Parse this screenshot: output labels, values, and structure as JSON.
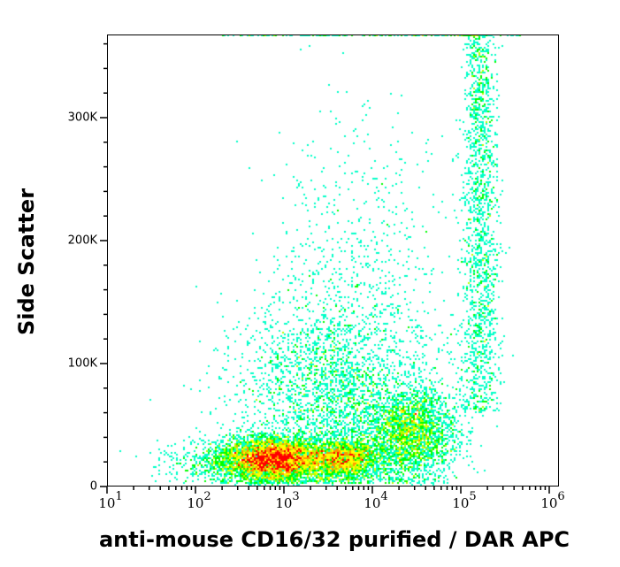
{
  "chart_data": {
    "type": "scatter",
    "subtype": "flow-cytometry-density-dot-plot",
    "title": "",
    "xlabel": "anti-mouse CD16/32 purified / DAR APC",
    "ylabel": "Side Scatter",
    "x_scale": "log",
    "x_range_log10": [
      1,
      6
    ],
    "x_ticks": [
      {
        "base": "10",
        "exp": "1",
        "log": 1
      },
      {
        "base": "10",
        "exp": "2",
        "log": 2
      },
      {
        "base": "10",
        "exp": "3",
        "log": 3
      },
      {
        "base": "10",
        "exp": "4",
        "log": 4
      },
      {
        "base": "10",
        "exp": "5",
        "log": 5
      },
      {
        "base": "10",
        "exp": "6",
        "log": 6
      }
    ],
    "y_scale": "linear",
    "ylim": [
      0,
      368000
    ],
    "y_ticks": [
      {
        "label": "0",
        "value": 0
      },
      {
        "label": "100K",
        "value": 100000
      },
      {
        "label": "200K",
        "value": 200000
      },
      {
        "label": "300K",
        "value": 300000
      }
    ],
    "y_minor_tick_step": 20000,
    "grid": false,
    "legend": null,
    "colormap": [
      "#0000ff",
      "#00b4ff",
      "#00ffc8",
      "#00ff00",
      "#b4ff00",
      "#ffff00",
      "#ff9600",
      "#ff0000"
    ],
    "populations": [
      {
        "name": "main-low-SSC-cluster",
        "center_log10_x": 2.88,
        "center_y": 22000,
        "sd_log10_x": 0.28,
        "sd_y": 9000,
        "n": 5200
      },
      {
        "name": "secondary-low-SSC-cluster",
        "center_log10_x": 3.65,
        "center_y": 22000,
        "sd_log10_x": 0.22,
        "sd_y": 8000,
        "n": 2200
      },
      {
        "name": "third-cluster",
        "center_log10_x": 4.45,
        "center_y": 42000,
        "sd_log10_x": 0.25,
        "sd_y": 18000,
        "n": 2400
      },
      {
        "name": "diffuse-mid-SSC",
        "center_log10_x": 3.6,
        "center_y": 75000,
        "sd_log10_x": 0.55,
        "sd_y": 40000,
        "n": 2600
      },
      {
        "name": "high-SSC-scatter",
        "center_log10_x": 3.8,
        "center_y": 170000,
        "sd_log10_x": 0.55,
        "sd_y": 70000,
        "n": 700
      },
      {
        "name": "high-positive-vertical-band",
        "center_log10_x": 5.22,
        "center_y": 220000,
        "sd_log10_x": 0.11,
        "sd_y": 80000,
        "n": 1600
      },
      {
        "name": "low-sparse-left",
        "center_log10_x": 2.2,
        "center_y": 20000,
        "sd_log10_x": 0.3,
        "sd_y": 10000,
        "n": 400
      }
    ],
    "top_pileup": {
      "y": 368000,
      "log10_x_range": [
        2.3,
        5.7
      ],
      "n": 160
    }
  }
}
